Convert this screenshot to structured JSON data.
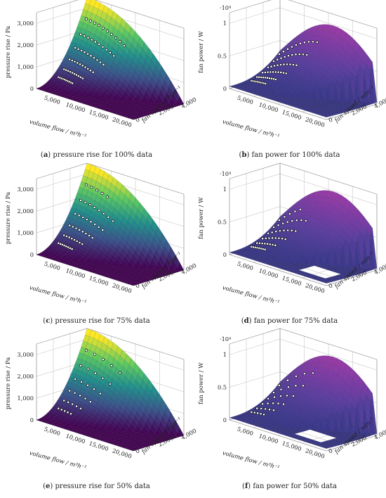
{
  "chart_data": [
    {
      "id": "a",
      "type": "surface3d",
      "metric": "pressure",
      "caption_letter": "a",
      "caption_text": "pressure rise for 100% data",
      "zlabel": "pressure rise / Pa",
      "xlabel": "volume flow / m³h⁻¹",
      "ylabel": "fan speed / min⁻¹",
      "x_ticks": [
        "5,000",
        "10,000",
        "15,000",
        "20,000"
      ],
      "y_ticks": [
        "0",
        "2,000",
        "4,000"
      ],
      "z_ticks": [
        "0",
        "1,000",
        "2,000",
        "3,000"
      ],
      "xlim": [
        0,
        22000
      ],
      "ylim": [
        0,
        4500
      ],
      "zlim": [
        0,
        3500
      ],
      "data_fraction": 1.0,
      "measured_points": 60
    },
    {
      "id": "b",
      "type": "surface3d",
      "metric": "power",
      "caption_letter": "b",
      "caption_text": "fan power for 100% data",
      "zlabel": "fan power / W",
      "xlabel": "volume flow / m³h⁻¹",
      "ylabel": "fan speed / min⁻¹",
      "z_multiplier": "·10⁴",
      "x_ticks": [
        "5,000",
        "10,000",
        "15,000",
        "20,000"
      ],
      "y_ticks": [
        "0",
        "2,000",
        "4,000"
      ],
      "z_ticks": [
        "0",
        "0.5",
        "1"
      ],
      "xlim": [
        0,
        22000
      ],
      "ylim": [
        0,
        4500
      ],
      "zlim": [
        0,
        12000
      ],
      "data_fraction": 1.0,
      "measured_points": 60
    },
    {
      "id": "c",
      "type": "surface3d",
      "metric": "pressure",
      "caption_letter": "c",
      "caption_text": "pressure rise for 75% data",
      "zlabel": "pressure rise / Pa",
      "xlabel": "volume flow / m³h⁻¹",
      "ylabel": "fan speed / min⁻¹",
      "x_ticks": [
        "5,000",
        "10,000",
        "15,000",
        "20,000"
      ],
      "y_ticks": [
        "0",
        "2,000",
        "4,000"
      ],
      "z_ticks": [
        "0",
        "1,000",
        "2,000",
        "3,000"
      ],
      "xlim": [
        0,
        22000
      ],
      "ylim": [
        0,
        4500
      ],
      "zlim": [
        0,
        3500
      ],
      "data_fraction": 0.75,
      "measured_points": 45
    },
    {
      "id": "d",
      "type": "surface3d",
      "metric": "power",
      "caption_letter": "d",
      "caption_text": "fan power for 75% data",
      "zlabel": "fan power / W",
      "xlabel": "volume flow / m³h⁻¹",
      "ylabel": "fan speed / min⁻¹",
      "z_multiplier": "·10⁴",
      "x_ticks": [
        "5,000",
        "10,000",
        "15,000",
        "20,000"
      ],
      "y_ticks": [
        "0",
        "2,000",
        "4,000"
      ],
      "z_ticks": [
        "0",
        "0.5",
        "1"
      ],
      "xlim": [
        0,
        22000
      ],
      "ylim": [
        0,
        4500
      ],
      "zlim": [
        0,
        12000
      ],
      "data_fraction": 0.75,
      "measured_points": 45
    },
    {
      "id": "e",
      "type": "surface3d",
      "metric": "pressure",
      "caption_letter": "e",
      "caption_text": "pressure rise for 50% data",
      "zlabel": "pressure rise / Pa",
      "xlabel": "volume flow / m³h⁻¹",
      "ylabel": "fan speed / min⁻¹",
      "x_ticks": [
        "5,000",
        "10,000",
        "15,000",
        "20,000"
      ],
      "y_ticks": [
        "0",
        "2,000",
        "4,000"
      ],
      "z_ticks": [
        "0",
        "1,000",
        "2,000",
        "3,000"
      ],
      "xlim": [
        0,
        22000
      ],
      "ylim": [
        0,
        4500
      ],
      "zlim": [
        0,
        3500
      ],
      "data_fraction": 0.5,
      "measured_points": 30
    },
    {
      "id": "f",
      "type": "surface3d",
      "metric": "power",
      "caption_letter": "f",
      "caption_text": "fan power for 50% data",
      "zlabel": "fan power / W",
      "xlabel": "volume flow / m³h⁻¹",
      "ylabel": "fan speed / min⁻¹",
      "z_multiplier": "·10⁴",
      "x_ticks": [
        "5,000",
        "10,000",
        "15,000",
        "20,000"
      ],
      "y_ticks": [
        "0",
        "2,000",
        "4,000"
      ],
      "z_ticks": [
        "0",
        "0.5",
        "1"
      ],
      "xlim": [
        0,
        22000
      ],
      "ylim": [
        0,
        4500
      ],
      "zlim": [
        0,
        12000
      ],
      "data_fraction": 0.5,
      "measured_points": 30
    }
  ],
  "colors": {
    "pressure_colormap": [
      "#440154",
      "#3b528b",
      "#21908d",
      "#5dc963",
      "#fde725"
    ],
    "power_colormap": [
      "#2c2f7a",
      "#3e3a8f",
      "#5a3fa0",
      "#7e3ca6",
      "#a33ba6"
    ],
    "grid": "#c8c8c8",
    "marker_fill": "#ffffff",
    "marker_edge": "#000000"
  }
}
